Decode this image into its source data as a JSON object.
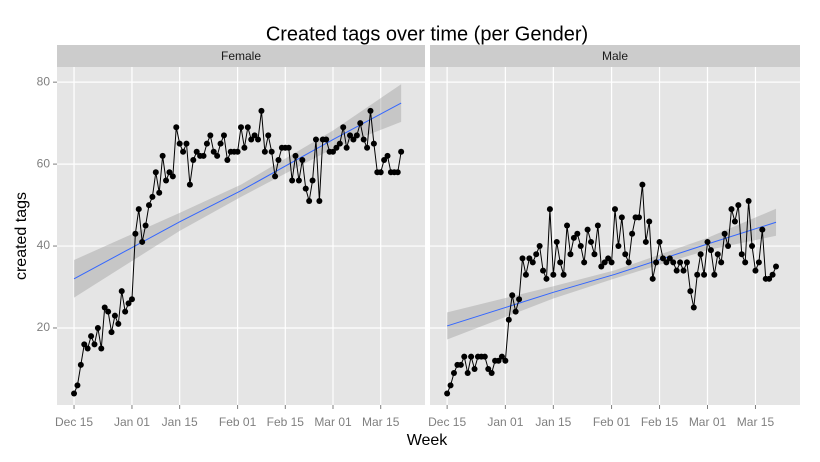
{
  "chart_data": {
    "type": "line",
    "title": "Created tags over time (per Gender)",
    "x_label": "Week",
    "y_label": "created tags",
    "x": [
      "Dec 15",
      "Dec 16",
      "Dec 17",
      "Dec 18",
      "Dec 19",
      "Dec 20",
      "Dec 21",
      "Dec 22",
      "Dec 23",
      "Dec 24",
      "Dec 25",
      "Dec 26",
      "Dec 27",
      "Dec 28",
      "Dec 29",
      "Dec 30",
      "Dec 31",
      "Jan 01",
      "Jan 02",
      "Jan 03",
      "Jan 04",
      "Jan 05",
      "Jan 06",
      "Jan 07",
      "Jan 08",
      "Jan 09",
      "Jan 10",
      "Jan 11",
      "Jan 12",
      "Jan 13",
      "Jan 14",
      "Jan 15",
      "Jan 16",
      "Jan 17",
      "Jan 18",
      "Jan 19",
      "Jan 20",
      "Jan 21",
      "Jan 22",
      "Jan 23",
      "Jan 24",
      "Jan 25",
      "Jan 26",
      "Jan 27",
      "Jan 28",
      "Jan 29",
      "Jan 30",
      "Jan 31",
      "Feb 01",
      "Feb 02",
      "Feb 03",
      "Feb 04",
      "Feb 05",
      "Feb 06",
      "Feb 07",
      "Feb 08",
      "Feb 09",
      "Feb 10",
      "Feb 11",
      "Feb 12",
      "Feb 13",
      "Feb 14",
      "Feb 15",
      "Feb 16",
      "Feb 17",
      "Feb 18",
      "Feb 19",
      "Feb 20",
      "Feb 21",
      "Feb 22",
      "Feb 23",
      "Feb 24",
      "Feb 25",
      "Feb 26",
      "Feb 27",
      "Feb 28",
      "Mar 01",
      "Mar 02",
      "Mar 03",
      "Mar 04",
      "Mar 05",
      "Mar 06",
      "Mar 07",
      "Mar 08",
      "Mar 09",
      "Mar 10",
      "Mar 11",
      "Mar 12",
      "Mar 13",
      "Mar 14",
      "Mar 15",
      "Mar 16",
      "Mar 17",
      "Mar 18",
      "Mar 19",
      "Mar 20",
      "Mar 21"
    ],
    "xlim": [
      "Dec 10",
      "Mar 28"
    ],
    "xticks": [
      "Dec 15",
      "Jan 01",
      "Jan 15",
      "Feb 01",
      "Feb 15",
      "Mar 01",
      "Mar 15"
    ],
    "ylim": [
      1.2,
      83.7
    ],
    "yticks": [
      20,
      40,
      60,
      80
    ],
    "grid": true,
    "color": "#000000",
    "fit_color": "#3366FF",
    "panels": [
      {
        "name": "Female",
        "values": [
          4,
          6,
          11,
          16,
          15,
          18,
          16,
          20,
          15,
          25,
          24,
          19,
          23,
          21,
          29,
          24,
          26,
          27,
          43,
          49,
          41,
          45,
          50,
          52,
          58,
          53,
          62,
          56,
          58,
          57,
          69,
          65,
          63,
          65,
          55,
          61,
          63,
          62,
          62,
          65,
          67,
          63,
          62,
          65,
          67,
          61,
          63,
          63,
          63,
          69,
          64,
          69,
          66,
          67,
          66,
          73,
          63,
          67,
          63,
          57,
          61,
          64,
          64,
          64,
          56,
          62,
          56,
          61,
          54,
          51,
          56,
          66,
          51,
          66,
          66,
          63,
          63,
          64,
          65,
          69,
          64,
          67,
          66,
          67,
          70,
          66,
          64,
          73,
          65,
          58,
          58,
          61,
          62,
          58,
          58,
          58,
          63
        ],
        "fit": {
          "x": [
            "Dec 15",
            "Jan 15",
            "Feb 02",
            "Mar 01",
            "Mar 21"
          ],
          "values": [
            32,
            45.9,
            53.5,
            66,
            74.9
          ],
          "lower": [
            27.4,
            43.7,
            52,
            63.8,
            70.3
          ],
          "upper": [
            36.6,
            48.1,
            55,
            68.2,
            79.5
          ]
        }
      },
      {
        "name": "Male",
        "values": [
          4,
          6,
          9,
          11,
          11,
          13,
          9,
          13,
          10,
          13,
          13,
          13,
          10,
          9,
          12,
          12,
          13,
          12,
          22,
          28,
          24,
          27,
          37,
          33,
          37,
          36,
          38,
          40,
          34,
          32,
          49,
          33,
          41,
          36,
          33,
          45,
          38,
          42,
          43,
          40,
          36,
          44,
          41,
          38,
          45,
          35,
          36,
          37,
          36,
          49,
          40,
          47,
          38,
          36,
          43,
          47,
          47,
          55,
          41,
          46,
          32,
          36,
          41,
          37,
          36,
          37,
          36,
          34,
          36,
          34,
          36,
          29,
          25,
          33,
          38,
          33,
          41,
          39,
          33,
          38,
          36,
          43,
          40,
          49,
          46,
          50,
          38,
          36,
          51,
          40,
          34,
          36,
          44,
          32,
          32,
          33,
          35
        ],
        "fit": {
          "x": [
            "Dec 15",
            "Jan 15",
            "Feb 02",
            "Mar 01",
            "Mar 21"
          ],
          "values": [
            20.5,
            28.7,
            33.1,
            40.5,
            45.8
          ],
          "lower": [
            17.2,
            27.2,
            32.1,
            39,
            42.5
          ],
          "upper": [
            23.8,
            30.2,
            34.1,
            42,
            49.1
          ]
        }
      }
    ]
  }
}
